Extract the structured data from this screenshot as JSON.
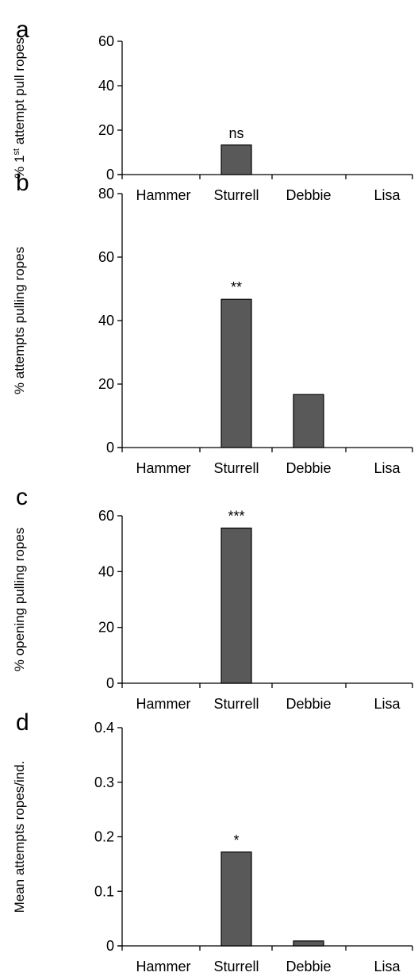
{
  "chart_data": [
    {
      "panel": "a",
      "type": "bar",
      "categories": [
        "Hammer",
        "Sturrell",
        "Debbie",
        "Lisa"
      ],
      "values": [
        0,
        13.3,
        0,
        0
      ],
      "ylabel_parts": [
        "% 1",
        "st",
        " attempt pull ropes"
      ],
      "yticks": [
        "0",
        "20",
        "40",
        "60"
      ],
      "ylim": [
        0,
        60
      ],
      "annotations": [
        {
          "category": "Sturrell",
          "text": "ns"
        }
      ]
    },
    {
      "panel": "b",
      "type": "bar",
      "categories": [
        "Hammer",
        "Sturrell",
        "Debbie",
        "Lisa"
      ],
      "values": [
        0,
        46.7,
        16.7,
        0
      ],
      "ylabel_parts": [
        "% attempts pulling ropes"
      ],
      "yticks": [
        "0",
        "20",
        "40",
        "60",
        "80"
      ],
      "ylim": [
        0,
        80
      ],
      "annotations": [
        {
          "category": "Sturrell",
          "text": "**"
        }
      ]
    },
    {
      "panel": "c",
      "type": "bar",
      "categories": [
        "Hammer",
        "Sturrell",
        "Debbie",
        "Lisa"
      ],
      "values": [
        0,
        55.6,
        0,
        0
      ],
      "ylabel_parts": [
        "% opening pulling ropes"
      ],
      "yticks": [
        "0",
        "20",
        "40",
        "60"
      ],
      "ylim": [
        0,
        60
      ],
      "annotations": [
        {
          "category": "Sturrell",
          "text": "***"
        }
      ]
    },
    {
      "panel": "d",
      "type": "bar",
      "categories": [
        "Hammer",
        "Sturrell",
        "Debbie",
        "Lisa"
      ],
      "values": [
        0,
        0.172,
        0.009,
        0
      ],
      "ylabel_parts": [
        "Mean attempts  ropes/ind."
      ],
      "yticks": [
        "0",
        "0.1",
        "0.2",
        "0.3",
        "0.4"
      ],
      "ylim": [
        0,
        0.4
      ],
      "annotations": [
        {
          "category": "Sturrell",
          "text": "*"
        }
      ]
    }
  ],
  "colors": {
    "bar_fill": "#595959",
    "bar_stroke": "#000000",
    "axis": "#000000"
  }
}
